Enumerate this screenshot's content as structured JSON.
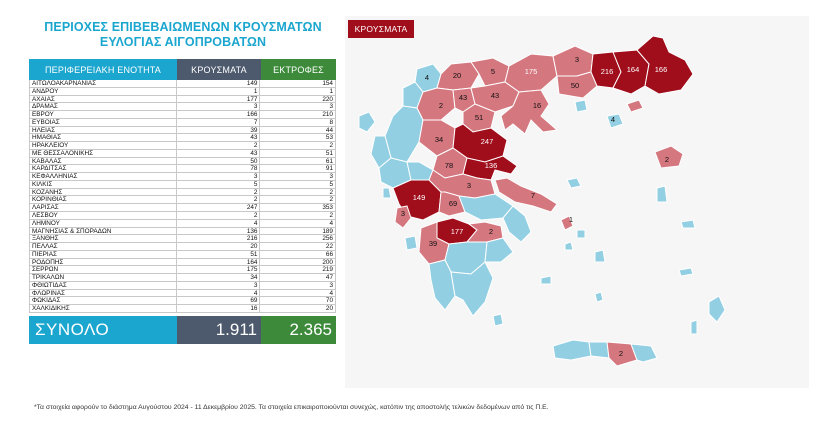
{
  "title_line1": "ΠΕΡΙΟΧΕΣ ΕΠΙΒΕΒΑΙΩΜΕΝΩΝ ΚΡΟΥΣΜΑΤΩΝ",
  "title_line2": "ΕΥΛΟΓΙΑΣ ΑΙΓΟΠΡΟΒΑΤΩΝ",
  "table": {
    "header_area": "ΠΕΡΙΦΕΡΕΙΑΚΗ ΕΝΟΤΗΤΑ",
    "header_cases": "ΚΡΟΥΣΜΑΤΑ",
    "header_culls": "ΕΚΤΡΟΦΕΣ",
    "rows": [
      {
        "area": "ΑΙΤΩΛΟΑΚΑΡΝΑΝΙΑΣ",
        "cases": "149",
        "culls": "154"
      },
      {
        "area": "ΑΝΔΡΟΥ",
        "cases": "1",
        "culls": "1"
      },
      {
        "area": "ΑΧΑΙΑΣ",
        "cases": "177",
        "culls": "220"
      },
      {
        "area": "ΔΡΑΜΑΣ",
        "cases": "3",
        "culls": "3"
      },
      {
        "area": "ΕΒΡΟΥ",
        "cases": "166",
        "culls": "210"
      },
      {
        "area": "ΕΥΒΟΙΑΣ",
        "cases": "7",
        "culls": "8"
      },
      {
        "area": "ΗΛΕΙΑΣ",
        "cases": "39",
        "culls": "44"
      },
      {
        "area": "ΗΜΑΘΙΑΣ",
        "cases": "43",
        "culls": "53"
      },
      {
        "area": "ΗΡΑΚΛΕΙΟΥ",
        "cases": "2",
        "culls": "2"
      },
      {
        "area": "ΜΕ ΘΕΣΣΑΛΟΝΙΚΗΣ",
        "cases": "43",
        "culls": "51"
      },
      {
        "area": "ΚΑΒΑΛΑΣ",
        "cases": "50",
        "culls": "61"
      },
      {
        "area": "ΚΑΡΔΙΤΣΑΣ",
        "cases": "78",
        "culls": "91"
      },
      {
        "area": "ΚΕΦΑΛΛΗΝΙΑΣ",
        "cases": "3",
        "culls": "3"
      },
      {
        "area": "ΚΙΛΚΙΣ",
        "cases": "5",
        "culls": "5"
      },
      {
        "area": "ΚΟΖΑΝΗΣ",
        "cases": "2",
        "culls": "2"
      },
      {
        "area": "ΚΟΡΙΝΘΙΑΣ",
        "cases": "2",
        "culls": "2"
      },
      {
        "area": "ΛΑΡΙΣΑΣ",
        "cases": "247",
        "culls": "353"
      },
      {
        "area": "ΛΕΣΒΟΥ",
        "cases": "2",
        "culls": "2"
      },
      {
        "area": "ΛΗΜΝΟΥ",
        "cases": "4",
        "culls": "4"
      },
      {
        "area": "ΜΑΓΝΗΣΙΑΣ & ΣΠΟΡΑΔΩΝ",
        "cases": "136",
        "culls": "189"
      },
      {
        "area": "ΞΑΝΘΗΣ",
        "cases": "216",
        "culls": "256"
      },
      {
        "area": "ΠΕΛΛΑΣ",
        "cases": "20",
        "culls": "22"
      },
      {
        "area": "ΠΙΕΡΙΑΣ",
        "cases": "51",
        "culls": "66"
      },
      {
        "area": "ΡΟΔΟΠΗΣ",
        "cases": "164",
        "culls": "200"
      },
      {
        "area": "ΣΕΡΡΩΝ",
        "cases": "175",
        "culls": "219"
      },
      {
        "area": "ΤΡΙΚΑΛΩΝ",
        "cases": "34",
        "culls": "47"
      },
      {
        "area": "ΦΘΙΩΤΙΔΑΣ",
        "cases": "3",
        "culls": "3"
      },
      {
        "area": "ΦΛΩΡΙΝΑΣ",
        "cases": "4",
        "culls": "4"
      },
      {
        "area": "ΦΩΚΙΔΑΣ",
        "cases": "69",
        "culls": "70"
      },
      {
        "area": "ΧΑΛΚΙΔΙΚΗΣ",
        "cases": "16",
        "culls": "20"
      }
    ],
    "total_label": "ΣΥΝΟΛΟ",
    "total_cases": "1.911",
    "total_culls": "2.365"
  },
  "map": {
    "legend_label": "ΚΡΟΥΣΜΑΤΑ",
    "colors": {
      "background": "#f6f6f6",
      "no_cases": "#92cfe3",
      "low": "#d4777f",
      "high": "#a00d1b",
      "border": "#ffffff",
      "table_header_area": "#1ba6cf",
      "table_header_cases": "#4d5a6d",
      "table_header_culls": "#3c8a3a"
    },
    "labels": [
      {
        "id": "florina",
        "text": "4"
      },
      {
        "id": "pella",
        "text": "20"
      },
      {
        "id": "kilkis",
        "text": "5"
      },
      {
        "id": "serres",
        "text": "175"
      },
      {
        "id": "drama",
        "text": "3"
      },
      {
        "id": "kavala",
        "text": "50"
      },
      {
        "id": "xanthi",
        "text": "216"
      },
      {
        "id": "rodopi",
        "text": "164"
      },
      {
        "id": "evros",
        "text": "166"
      },
      {
        "id": "kozani",
        "text": "2"
      },
      {
        "id": "imathia",
        "text": "43"
      },
      {
        "id": "thessaloniki",
        "text": "43"
      },
      {
        "id": "pieria",
        "text": "51"
      },
      {
        "id": "chalkidiki",
        "text": "16"
      },
      {
        "id": "limnos",
        "text": "4"
      },
      {
        "id": "trikala",
        "text": "34"
      },
      {
        "id": "larisa",
        "text": "247"
      },
      {
        "id": "karditsa",
        "text": "78"
      },
      {
        "id": "magnisia",
        "text": "136"
      },
      {
        "id": "lesvos",
        "text": "2"
      },
      {
        "id": "aitoloakarnania",
        "text": "149"
      },
      {
        "id": "fokida",
        "text": "69"
      },
      {
        "id": "fthiotida",
        "text": "3"
      },
      {
        "id": "evia",
        "text": "7"
      },
      {
        "id": "kefallinia",
        "text": "3"
      },
      {
        "id": "andros",
        "text": "1"
      },
      {
        "id": "achaia",
        "text": "177"
      },
      {
        "id": "ileia",
        "text": "39"
      },
      {
        "id": "korinthia",
        "text": "2"
      },
      {
        "id": "irakleio",
        "text": "2"
      }
    ]
  },
  "footnote": "*Τα στοιχεία αφορούν το διάστημα Αυγούστου 2024 - 11 Δεκεμβρίου 2025. Τα στοιχεία επικαιροποιούνται συνεχώς, κατόπιν της αποστολής τελικών δεδομένων από τις Π.Ε."
}
